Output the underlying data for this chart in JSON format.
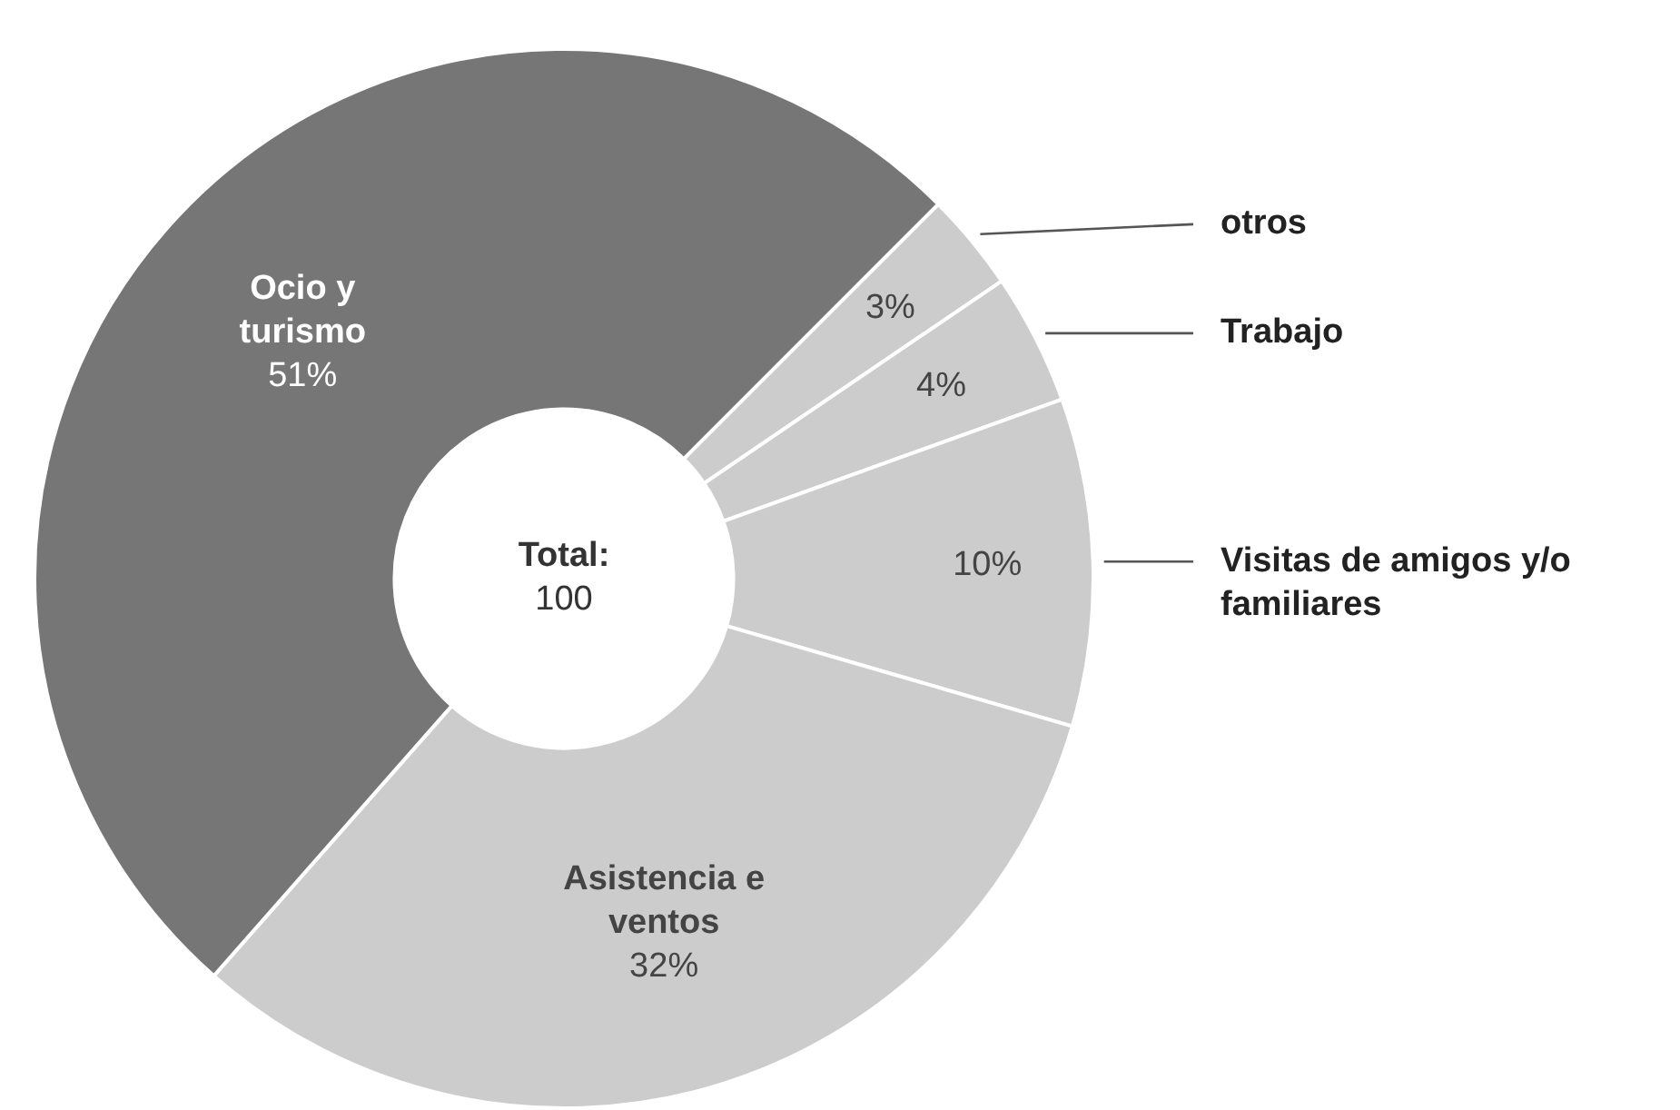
{
  "chart_data": {
    "type": "donut",
    "categories": [
      "otros",
      "Trabajo",
      "Visitas de amigos y/o familiares",
      "Asistencia e ventos",
      "Ocio y turismo"
    ],
    "values": [
      3,
      4,
      10,
      32,
      51
    ],
    "value_labels": [
      "3%",
      "4%",
      "10%",
      "32%",
      "51%"
    ],
    "colors": [
      "#cccccc",
      "#cccccc",
      "#cccccc",
      "#cccccc",
      "#767676"
    ],
    "annotations": [
      "Total:",
      "100"
    ],
    "legend": false
  }
}
